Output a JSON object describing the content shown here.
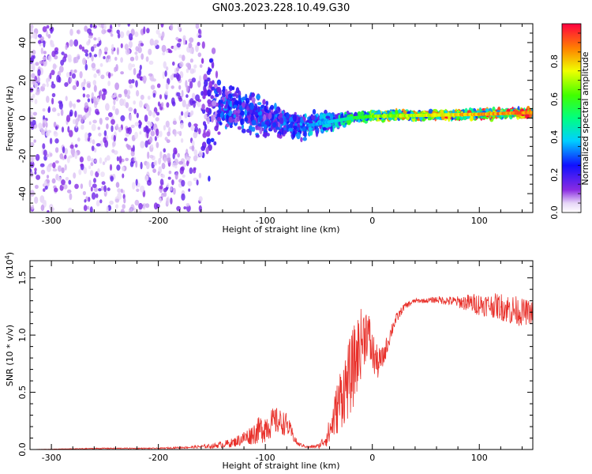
{
  "title": "GN03.2023.228.10.49.G30",
  "chart_data": [
    {
      "type": "heatmap",
      "title": "GN03.2023.228.10.49.G30",
      "xlabel": "Height of straight line (km)",
      "ylabel": "Frequency (Hz)",
      "xlim": [
        -320,
        150
      ],
      "ylim": [
        -50,
        50
      ],
      "xticks": [
        -300,
        -200,
        -100,
        0,
        100
      ],
      "yticks": [
        -40,
        -20,
        0,
        20,
        40
      ],
      "colorbar": {
        "label": "Normalized spectral amplitude",
        "range": [
          0.0,
          1.0
        ],
        "ticks": [
          0.0,
          0.2,
          0.4,
          0.6,
          0.8
        ]
      },
      "trace": [
        {
          "x": -320,
          "f": null,
          "spread": 50,
          "amp": 0.12
        },
        {
          "x": -160,
          "f": 10,
          "spread": 45,
          "amp": 0.15
        },
        {
          "x": -140,
          "f": 6,
          "spread": 12,
          "amp": 0.3
        },
        {
          "x": -120,
          "f": 4,
          "spread": 10,
          "amp": 0.3
        },
        {
          "x": -100,
          "f": 0,
          "spread": 10,
          "amp": 0.28
        },
        {
          "x": -80,
          "f": -3,
          "spread": 8,
          "amp": 0.3
        },
        {
          "x": -60,
          "f": -4,
          "spread": 6,
          "amp": 0.35
        },
        {
          "x": -40,
          "f": -2,
          "spread": 4,
          "amp": 0.4
        },
        {
          "x": -20,
          "f": 0,
          "spread": 2,
          "amp": 0.55
        },
        {
          "x": 0,
          "f": 1,
          "spread": 2,
          "amp": 0.7
        },
        {
          "x": 50,
          "f": 1.5,
          "spread": 2,
          "amp": 0.8
        },
        {
          "x": 100,
          "f": 2,
          "spread": 2,
          "amp": 0.9
        },
        {
          "x": 150,
          "f": 3,
          "spread": 2,
          "amp": 0.95
        }
      ]
    },
    {
      "type": "line",
      "xlabel": "Height of straight line (km)",
      "ylabel": "SNR (10 * v/v)",
      "yscale_label": "(x10",
      "yscale_exp": "4",
      "yscale_close": ")",
      "xlim": [
        -320,
        150
      ],
      "ylim": [
        0.0,
        1.65
      ],
      "xticks": [
        -300,
        -200,
        -100,
        0,
        100
      ],
      "yticks": [
        0.0,
        0.5,
        1.0,
        1.5
      ],
      "ytick_labels": [
        "0.0",
        "0.5",
        "1.0",
        "1.5"
      ],
      "series": [
        {
          "color": "#e8302a",
          "x": [
            -320,
            -250,
            -200,
            -170,
            -150,
            -130,
            -115,
            -100,
            -90,
            -80,
            -70,
            -60,
            -50,
            -45,
            -40,
            -35,
            -30,
            -25,
            -20,
            -15,
            -10,
            -5,
            0,
            5,
            10,
            15,
            20,
            25,
            30,
            40,
            50,
            60,
            70,
            80,
            90,
            100,
            110,
            120,
            130,
            140,
            150
          ],
          "y": [
            0.0,
            0.01,
            0.01,
            0.02,
            0.03,
            0.06,
            0.12,
            0.2,
            0.25,
            0.22,
            0.05,
            0.02,
            0.03,
            0.08,
            0.15,
            0.3,
            0.45,
            0.55,
            0.65,
            0.8,
            0.95,
            1.05,
            0.85,
            0.75,
            0.8,
            0.95,
            1.1,
            1.18,
            1.25,
            1.3,
            1.3,
            1.31,
            1.3,
            1.29,
            1.28,
            1.27,
            1.26,
            1.25,
            1.22,
            1.2,
            1.2
          ],
          "noise": [
            0.0,
            0.005,
            0.005,
            0.01,
            0.02,
            0.04,
            0.08,
            0.14,
            0.12,
            0.1,
            0.02,
            0.01,
            0.02,
            0.06,
            0.12,
            0.2,
            0.28,
            0.32,
            0.35,
            0.35,
            0.3,
            0.25,
            0.2,
            0.14,
            0.1,
            0.08,
            0.06,
            0.04,
            0.03,
            0.02,
            0.02,
            0.03,
            0.04,
            0.05,
            0.08,
            0.1,
            0.1,
            0.12,
            0.14,
            0.12,
            0.1
          ]
        }
      ]
    }
  ]
}
